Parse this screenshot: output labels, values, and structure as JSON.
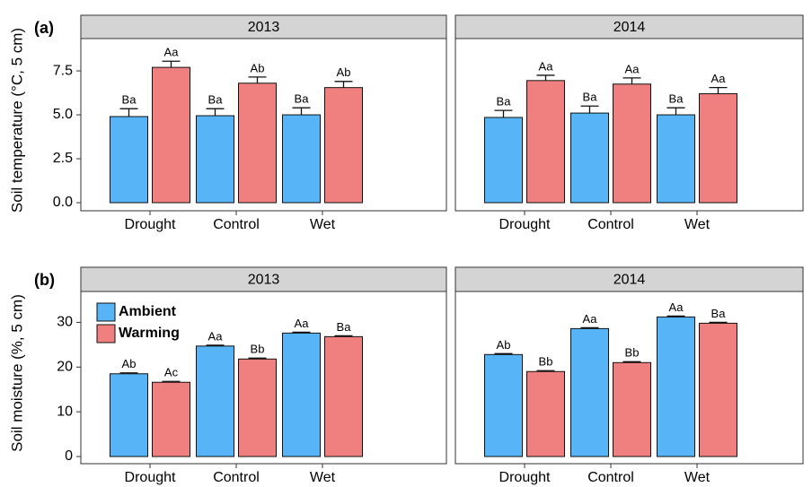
{
  "chart_data": [
    {
      "type": "bar",
      "panel_label": "(a)",
      "ylabel": "Soil temperature (°C, 5 cm)",
      "title": "2013",
      "categories": [
        "Drought",
        "Control",
        "Wet"
      ],
      "series": [
        {
          "color": "#56b4f7",
          "values": [
            4.9,
            4.95,
            5.0
          ],
          "errors": [
            0.45,
            0.4,
            0.4
          ],
          "letters": [
            "Ba",
            "Ba",
            "Ba"
          ]
        },
        {
          "color": "#f08080",
          "values": [
            7.7,
            6.8,
            6.55
          ],
          "errors": [
            0.35,
            0.35,
            0.35
          ],
          "letters": [
            "Aa",
            "Ab",
            "Ab"
          ]
        }
      ],
      "ylim": [
        -0.46,
        9.34
      ],
      "yticks": [
        {
          "value": 0,
          "label": "0.0"
        },
        2.5,
        {
          "value": 5,
          "label": "5.0"
        },
        7.5
      ]
    },
    {
      "type": "bar",
      "title": "2014",
      "categories": [
        "Drought",
        "Control",
        "Wet"
      ],
      "series": [
        {
          "color": "#56b4f7",
          "values": [
            4.85,
            5.1,
            5.0
          ],
          "errors": [
            0.4,
            0.4,
            0.4
          ],
          "letters": [
            "Ba",
            "Ba",
            "Ba"
          ]
        },
        {
          "color": "#f08080",
          "values": [
            6.95,
            6.75,
            6.2
          ],
          "errors": [
            0.3,
            0.35,
            0.35
          ],
          "letters": [
            "Aa",
            "Aa",
            "Aa"
          ]
        }
      ],
      "ylim": [
        -0.46,
        9.34
      ]
    },
    {
      "type": "bar",
      "panel_label": "(b)",
      "ylabel": "Soil moisture (%, 5 cm)",
      "title": "2013",
      "legend": "upper left",
      "categories": [
        "Drought",
        "Control",
        "Wet"
      ],
      "series": [
        {
          "name": "Ambient",
          "color": "#56b4f7",
          "values": [
            18.5,
            24.7,
            27.6
          ],
          "errors": [
            0.2,
            0.2,
            0.2
          ],
          "letters": [
            "Ab",
            "Aa",
            "Aa"
          ]
        },
        {
          "name": "Warming",
          "color": "#f08080",
          "values": [
            16.6,
            21.8,
            26.8
          ],
          "errors": [
            0.2,
            0.2,
            0.2
          ],
          "letters": [
            "Ac",
            "Bb",
            "Ba"
          ]
        }
      ],
      "ylim": [
        -1.6,
        36.9
      ],
      "yticks": [
        0,
        10,
        20,
        30
      ]
    },
    {
      "type": "bar",
      "title": "2014",
      "categories": [
        "Drought",
        "Control",
        "Wet"
      ],
      "series": [
        {
          "color": "#56b4f7",
          "values": [
            22.8,
            28.6,
            31.2
          ],
          "errors": [
            0.2,
            0.2,
            0.2
          ],
          "letters": [
            "Ab",
            "Aa",
            "Aa"
          ]
        },
        {
          "color": "#f08080",
          "values": [
            19.0,
            21.0,
            29.8
          ],
          "errors": [
            0.2,
            0.2,
            0.2
          ],
          "letters": [
            "Bb",
            "Bb",
            "Ba"
          ]
        }
      ],
      "ylim": [
        -1.6,
        36.9
      ]
    }
  ]
}
